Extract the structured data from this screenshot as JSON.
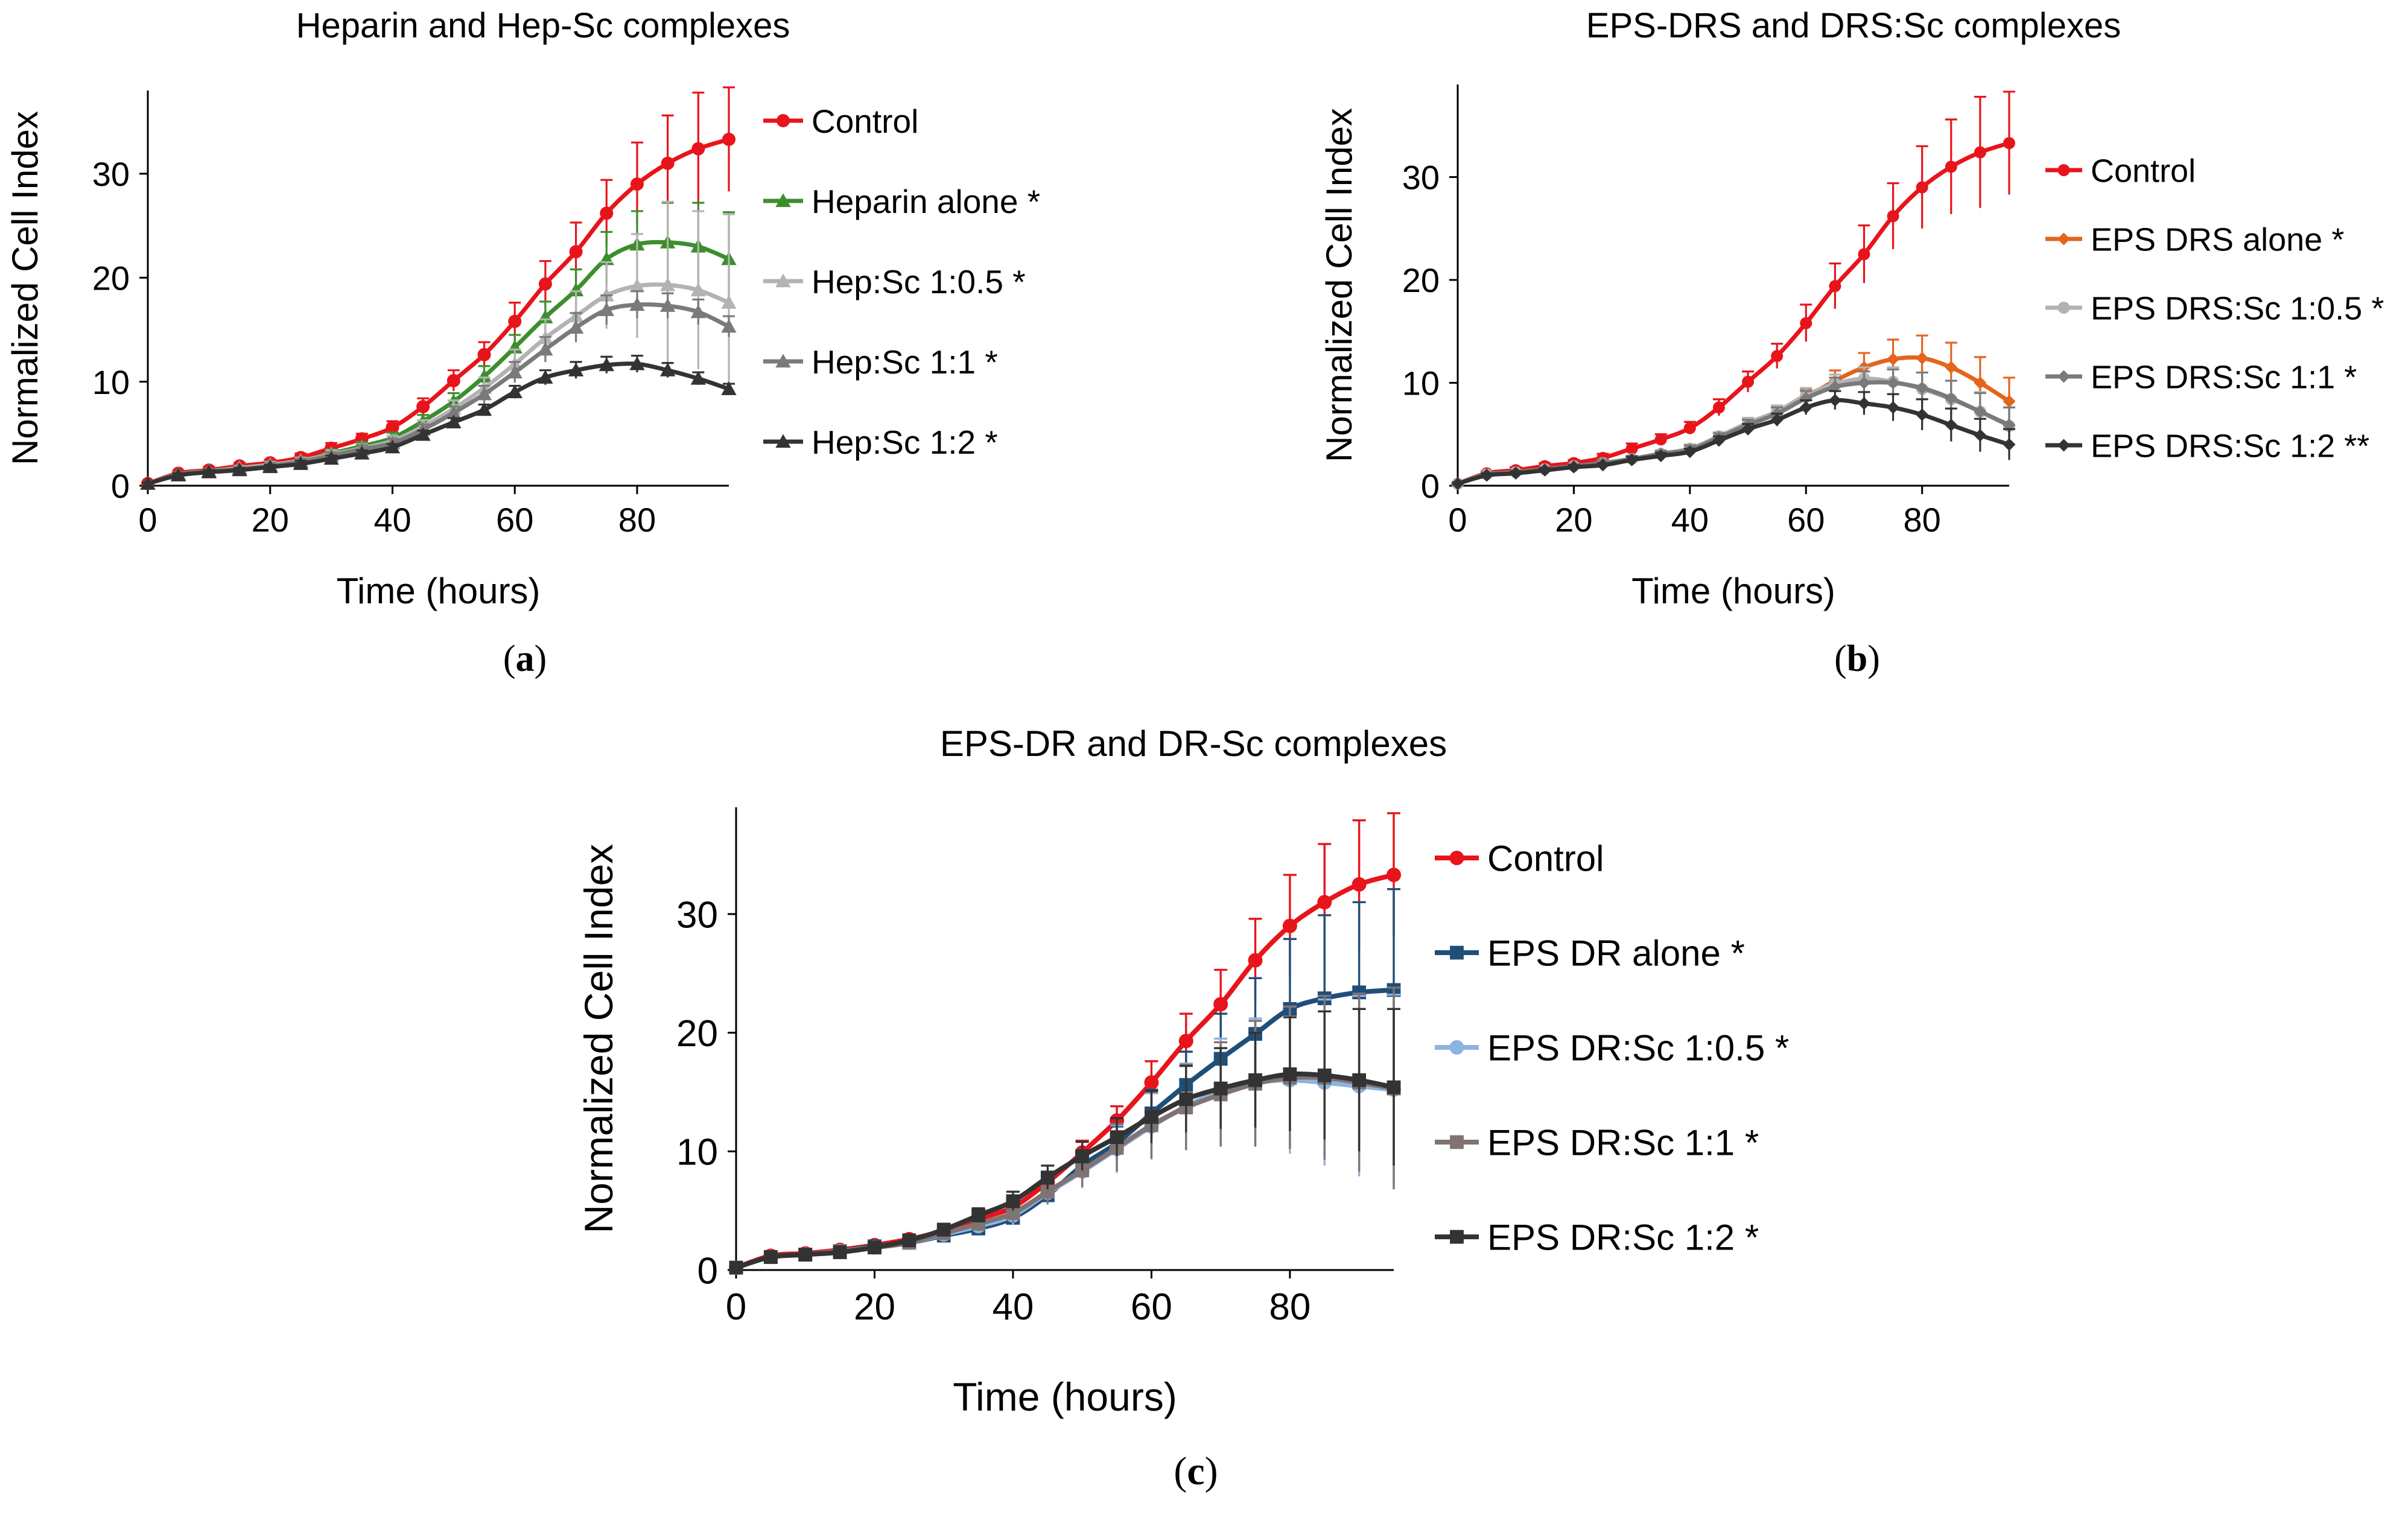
{
  "chart_data": [
    {
      "type": "line",
      "panel_label": "(a)",
      "panel_letter": "a",
      "title": "Heparin and Hep-Sc complexes",
      "xlabel": "Time (hours)",
      "ylabel": "Normalized Cell Index",
      "xlim": [
        0,
        95
      ],
      "ylim": [
        0,
        38
      ],
      "xticks": [
        0,
        20,
        40,
        60,
        80
      ],
      "yticks": [
        0,
        10,
        20,
        30
      ],
      "x": [
        0,
        5,
        10,
        15,
        20,
        25,
        30,
        35,
        40,
        45,
        50,
        55,
        60,
        65,
        70,
        75,
        80,
        85,
        90,
        95
      ],
      "series": [
        {
          "name": "Control",
          "color": "#e8141b",
          "marker": "circle",
          "values": [
            0.2,
            1.2,
            1.5,
            1.9,
            2.2,
            2.7,
            3.6,
            4.5,
            5.6,
            7.6,
            10.1,
            12.6,
            15.8,
            19.4,
            22.5,
            26.2,
            29.0,
            31.0,
            32.4,
            33.3
          ],
          "errors": [
            0.1,
            0.2,
            0.3,
            0.3,
            0.3,
            0.4,
            0.5,
            0.5,
            0.6,
            0.8,
            1.0,
            1.2,
            1.8,
            2.2,
            2.8,
            3.2,
            4.0,
            4.6,
            5.4,
            5.0
          ]
        },
        {
          "name": "Heparin alone *",
          "color": "#3c8e2d",
          "marker": "triangle",
          "values": [
            0.2,
            1.1,
            1.4,
            1.7,
            2.0,
            2.4,
            3.1,
            3.8,
            4.6,
            6.2,
            8.1,
            10.5,
            13.3,
            16.2,
            18.8,
            21.8,
            23.2,
            23.4,
            23.0,
            21.8
          ],
          "errors": [
            0.1,
            0.2,
            0.2,
            0.2,
            0.3,
            0.3,
            0.4,
            0.4,
            0.5,
            0.6,
            0.8,
            1.0,
            1.2,
            1.5,
            2.0,
            2.6,
            3.2,
            3.8,
            4.2,
            4.5
          ]
        },
        {
          "name": "Hep:Sc 1:0.5 *",
          "color": "#b3b3b3",
          "marker": "triangle",
          "values": [
            0.2,
            1.1,
            1.4,
            1.7,
            2.0,
            2.4,
            3.0,
            3.6,
            4.3,
            5.7,
            7.4,
            9.4,
            11.7,
            14.2,
            16.3,
            18.3,
            19.2,
            19.3,
            18.8,
            17.6
          ],
          "errors": [
            0.1,
            0.2,
            0.2,
            0.2,
            0.3,
            0.3,
            0.4,
            0.4,
            0.5,
            0.6,
            0.8,
            1.0,
            1.4,
            1.8,
            2.4,
            3.2,
            5.0,
            8.0,
            7.6,
            8.5
          ]
        },
        {
          "name": "Hep:Sc 1:1 *",
          "color": "#7a7a7a",
          "marker": "triangle",
          "values": [
            0.2,
            1.1,
            1.4,
            1.6,
            1.9,
            2.3,
            2.9,
            3.5,
            4.1,
            5.4,
            7.0,
            8.8,
            10.9,
            13.1,
            15.2,
            16.9,
            17.4,
            17.3,
            16.7,
            15.3
          ],
          "errors": [
            0.1,
            0.2,
            0.2,
            0.2,
            0.3,
            0.3,
            0.3,
            0.4,
            0.4,
            0.5,
            0.6,
            0.8,
            1.0,
            1.2,
            1.4,
            1.4,
            1.3,
            1.2,
            1.2,
            1.0
          ]
        },
        {
          "name": "Hep:Sc 1:2 *",
          "color": "#333333",
          "marker": "triangle",
          "values": [
            0.2,
            1.0,
            1.3,
            1.5,
            1.8,
            2.1,
            2.6,
            3.1,
            3.7,
            4.9,
            6.1,
            7.3,
            9.0,
            10.4,
            11.1,
            11.6,
            11.7,
            11.1,
            10.3,
            9.3
          ],
          "errors": [
            0.1,
            0.2,
            0.2,
            0.2,
            0.2,
            0.3,
            0.3,
            0.3,
            0.3,
            0.4,
            0.4,
            0.5,
            0.6,
            0.7,
            0.8,
            0.8,
            0.8,
            0.7,
            0.6,
            0.5
          ]
        }
      ]
    },
    {
      "type": "line",
      "panel_label": "(b)",
      "panel_letter": "b",
      "title": "EPS-DRS and DRS:Sc complexes",
      "xlabel": "Time (hours)",
      "ylabel": "Normalized Cell Index",
      "xlim": [
        0,
        95
      ],
      "ylim": [
        0,
        39
      ],
      "xticks": [
        0,
        20,
        40,
        60,
        80
      ],
      "yticks": [
        0,
        10,
        20,
        30
      ],
      "x": [
        0,
        5,
        10,
        15,
        20,
        25,
        30,
        35,
        40,
        45,
        50,
        55,
        60,
        65,
        70,
        75,
        80,
        85,
        90,
        95
      ],
      "series": [
        {
          "name": "Control",
          "color": "#e8141b",
          "marker": "circle",
          "values": [
            0.2,
            1.2,
            1.5,
            1.9,
            2.2,
            2.7,
            3.6,
            4.5,
            5.6,
            7.6,
            10.1,
            12.6,
            15.8,
            19.4,
            22.5,
            26.2,
            29.0,
            31.0,
            32.4,
            33.3
          ],
          "errors": [
            0.1,
            0.2,
            0.3,
            0.3,
            0.3,
            0.4,
            0.5,
            0.5,
            0.6,
            0.8,
            1.0,
            1.2,
            1.8,
            2.2,
            2.8,
            3.2,
            4.0,
            4.6,
            5.4,
            5.0
          ]
        },
        {
          "name": "EPS DRS alone *",
          "color": "#e4641c",
          "marker": "diamond",
          "values": [
            0.2,
            1.1,
            1.3,
            1.6,
            1.9,
            2.2,
            2.6,
            3.1,
            3.6,
            4.7,
            6.0,
            7.1,
            8.6,
            10.2,
            11.5,
            12.3,
            12.4,
            11.5,
            10.0,
            8.2
          ],
          "errors": [
            0.1,
            0.2,
            0.2,
            0.2,
            0.2,
            0.3,
            0.3,
            0.3,
            0.4,
            0.4,
            0.5,
            0.6,
            0.8,
            1.0,
            1.4,
            1.9,
            2.2,
            2.4,
            2.5,
            2.3
          ]
        },
        {
          "name": "EPS DRS:Sc 1:0.5 *",
          "color": "#b3b3b3",
          "marker": "circle",
          "values": [
            0.2,
            1.1,
            1.3,
            1.6,
            1.9,
            2.2,
            2.6,
            3.1,
            3.6,
            4.8,
            6.1,
            7.2,
            8.8,
            9.9,
            10.4,
            10.1,
            9.4,
            8.4,
            7.2,
            5.8
          ],
          "errors": [
            0.1,
            0.2,
            0.2,
            0.2,
            0.2,
            0.3,
            0.3,
            0.3,
            0.4,
            0.4,
            0.5,
            0.6,
            0.7,
            0.9,
            1.1,
            1.4,
            1.6,
            1.8,
            1.9,
            1.8
          ]
        },
        {
          "name": "EPS DRS:Sc 1:1 *",
          "color": "#7a7a7a",
          "marker": "diamond",
          "values": [
            0.2,
            1.1,
            1.3,
            1.6,
            1.9,
            2.2,
            2.6,
            3.1,
            3.5,
            4.7,
            5.9,
            7.0,
            8.5,
            9.6,
            10.0,
            10.0,
            9.5,
            8.5,
            7.2,
            5.9
          ],
          "errors": [
            0.1,
            0.2,
            0.2,
            0.2,
            0.2,
            0.3,
            0.3,
            0.3,
            0.4,
            0.4,
            0.5,
            0.6,
            0.7,
            0.9,
            1.1,
            1.3,
            1.5,
            1.7,
            1.8,
            1.7
          ]
        },
        {
          "name": "EPS DRS:Sc 1:2 **",
          "color": "#333333",
          "marker": "diamond",
          "values": [
            0.2,
            1.0,
            1.2,
            1.5,
            1.8,
            2.0,
            2.5,
            2.9,
            3.3,
            4.4,
            5.5,
            6.4,
            7.6,
            8.3,
            8.0,
            7.6,
            6.9,
            5.9,
            4.9,
            4.0
          ],
          "errors": [
            0.1,
            0.2,
            0.2,
            0.2,
            0.2,
            0.2,
            0.3,
            0.3,
            0.3,
            0.4,
            0.5,
            0.6,
            0.7,
            0.9,
            1.1,
            1.3,
            1.5,
            1.6,
            1.6,
            1.5
          ]
        }
      ]
    },
    {
      "type": "line",
      "panel_label": "(c)",
      "panel_letter": "c",
      "title": "EPS-DR and DR-Sc complexes",
      "xlabel": "Time (hours)",
      "ylabel": "Normalized Cell Index",
      "xlim": [
        0,
        95
      ],
      "ylim": [
        0,
        39
      ],
      "xticks": [
        0,
        20,
        40,
        60,
        80
      ],
      "yticks": [
        0,
        10,
        20,
        30
      ],
      "x": [
        0,
        5,
        10,
        15,
        20,
        25,
        30,
        35,
        40,
        45,
        50,
        55,
        60,
        65,
        70,
        75,
        80,
        85,
        90,
        95
      ],
      "series": [
        {
          "name": "Control",
          "color": "#e8141b",
          "marker": "circle",
          "values": [
            0.2,
            1.2,
            1.4,
            1.7,
            2.1,
            2.6,
            3.3,
            4.3,
            5.3,
            7.4,
            9.9,
            12.6,
            15.8,
            19.3,
            22.4,
            26.1,
            29.0,
            31.0,
            32.5,
            33.3
          ],
          "errors": [
            0.1,
            0.2,
            0.3,
            0.3,
            0.3,
            0.4,
            0.5,
            0.5,
            0.6,
            0.8,
            1.0,
            1.2,
            1.8,
            2.3,
            2.9,
            3.5,
            4.3,
            4.9,
            5.4,
            5.2
          ]
        },
        {
          "name": "EPS DR alone *",
          "color": "#1f4e79",
          "marker": "square",
          "values": [
            0.2,
            1.1,
            1.3,
            1.6,
            2.0,
            2.3,
            2.9,
            3.5,
            4.4,
            6.3,
            8.8,
            10.7,
            13.2,
            15.6,
            17.8,
            19.9,
            22.0,
            22.9,
            23.4,
            23.6
          ],
          "errors": [
            0.1,
            0.2,
            0.3,
            0.3,
            0.3,
            0.4,
            0.4,
            0.5,
            0.6,
            0.8,
            1.0,
            1.4,
            2.0,
            2.8,
            3.8,
            4.7,
            5.9,
            7.0,
            7.6,
            8.5
          ]
        },
        {
          "name": "EPS DR:Sc 1:0.5 *",
          "color": "#8db3e0",
          "marker": "circle",
          "values": [
            0.2,
            1.1,
            1.3,
            1.6,
            1.9,
            2.3,
            3.0,
            3.7,
            4.6,
            6.5,
            8.3,
            10.2,
            12.1,
            13.8,
            15.1,
            15.8,
            16.0,
            15.8,
            15.5,
            15.2
          ],
          "errors": [
            0.1,
            0.2,
            0.3,
            0.3,
            0.3,
            0.4,
            0.5,
            0.6,
            0.8,
            1.0,
            1.4,
            2.0,
            2.8,
            3.6,
            4.4,
            5.4,
            6.2,
            7.0,
            7.6,
            8.0
          ]
        },
        {
          "name": "EPS DR:Sc 1:1 *",
          "color": "#7f7373",
          "marker": "square",
          "values": [
            0.2,
            1.1,
            1.3,
            1.6,
            1.9,
            2.3,
            3.1,
            3.9,
            4.8,
            6.6,
            8.4,
            10.3,
            12.2,
            13.7,
            14.8,
            15.7,
            16.2,
            16.2,
            15.8,
            15.3
          ],
          "errors": [
            0.1,
            0.2,
            0.3,
            0.3,
            0.3,
            0.4,
            0.5,
            0.6,
            0.8,
            1.0,
            1.4,
            2.0,
            2.8,
            3.6,
            4.4,
            5.3,
            6.0,
            6.9,
            7.5,
            8.5
          ]
        },
        {
          "name": "EPS DR:Sc 1:2 *",
          "color": "#333333",
          "marker": "square",
          "values": [
            0.2,
            1.1,
            1.3,
            1.5,
            1.9,
            2.5,
            3.4,
            4.6,
            5.8,
            7.8,
            9.6,
            11.2,
            12.9,
            14.4,
            15.3,
            16.0,
            16.5,
            16.4,
            16.0,
            15.4
          ],
          "errors": [
            0.1,
            0.2,
            0.3,
            0.3,
            0.3,
            0.4,
            0.5,
            0.6,
            0.8,
            1.0,
            1.2,
            1.6,
            2.2,
            2.8,
            3.4,
            4.0,
            4.8,
            5.4,
            6.0,
            6.6
          ]
        }
      ]
    }
  ]
}
